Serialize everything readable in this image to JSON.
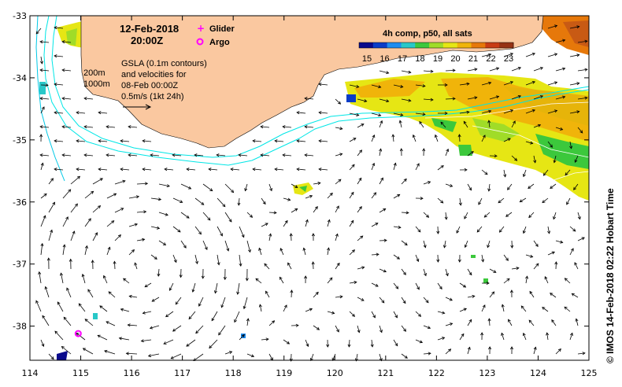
{
  "map": {
    "date": "12-Feb-2018",
    "time": "20:00Z",
    "legend_items": [
      {
        "label": "Glider",
        "color": "#ff00ff",
        "symbol": "plus"
      },
      {
        "label": "Argo",
        "color": "#ff00ff",
        "symbol": "circle"
      }
    ],
    "gsla_note_lines": [
      "GSLA (0.1m contours)",
      "and velocities for",
      "08-Feb 00:00Z",
      "0.5m/s (1kt 24h)"
    ],
    "isobath_labels": [
      "200m",
      "1000m"
    ],
    "colorbar": {
      "title": "4h comp, p50, all sats",
      "ticks": [
        "15",
        "16",
        "17",
        "18",
        "19",
        "20",
        "21",
        "22",
        "23"
      ],
      "min": 15,
      "max": 23,
      "colors": [
        "#0a0a8c",
        "#0a3cc8",
        "#1e8cf0",
        "#28c8c8",
        "#3cc83c",
        "#a0dc28",
        "#e6e614",
        "#f0b40a",
        "#e6780a",
        "#c83c14",
        "#963214"
      ]
    },
    "lon_ticks": [
      "114",
      "115",
      "116",
      "117",
      "118",
      "119",
      "120",
      "121",
      "122",
      "123",
      "124",
      "125"
    ],
    "lat_ticks": [
      "-33",
      "-34",
      "-35",
      "-36",
      "-37",
      "-38"
    ],
    "lon_range": [
      114,
      125
    ],
    "lat_range": [
      -38.55,
      -33.0
    ],
    "argo_float": {
      "lon": 114.95,
      "lat": -38.12
    },
    "land_color": "#fac8a0",
    "contour_color": "#00e6e6",
    "credit": "© IMOS 14-Feb-2018 02:22 Hobart Time"
  }
}
